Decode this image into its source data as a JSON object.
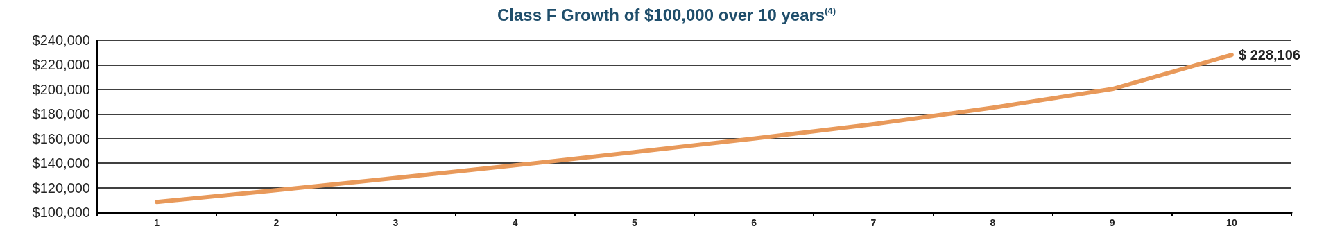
{
  "chart_data": {
    "type": "line",
    "title": "Class F Growth of $100,000 over 10 years$^{(4)}$",
    "categories": [
      "1",
      "2",
      "3",
      "4",
      "5",
      "6",
      "7",
      "8",
      "9",
      "10"
    ],
    "series": [
      {
        "color": "#e8995a",
        "values": [
          108300,
          117900,
          127900,
          138200,
          149000,
          160000,
          171700,
          185100,
          200300,
          228106
        ],
        "value_labels": [
          null,
          null,
          null,
          null,
          null,
          null,
          null,
          null,
          null,
          "$ 228,106"
        ]
      }
    ],
    "ylim": [
      100000,
      240000
    ],
    "yticks": [
      {
        "value": 100000,
        "label": "$100,000"
      },
      {
        "value": 120000,
        "label": "$120,000"
      },
      {
        "value": 140000,
        "label": "$140,000"
      },
      {
        "value": 160000,
        "label": "$160,000"
      },
      {
        "value": 180000,
        "label": "$180,000"
      },
      {
        "value": 200000,
        "label": "$200,000"
      },
      {
        "value": 220000,
        "label": "$220,000"
      },
      {
        "value": 240000,
        "label": "$240,000"
      }
    ],
    "grid": "y",
    "marker": "none",
    "line_style": "solid"
  }
}
